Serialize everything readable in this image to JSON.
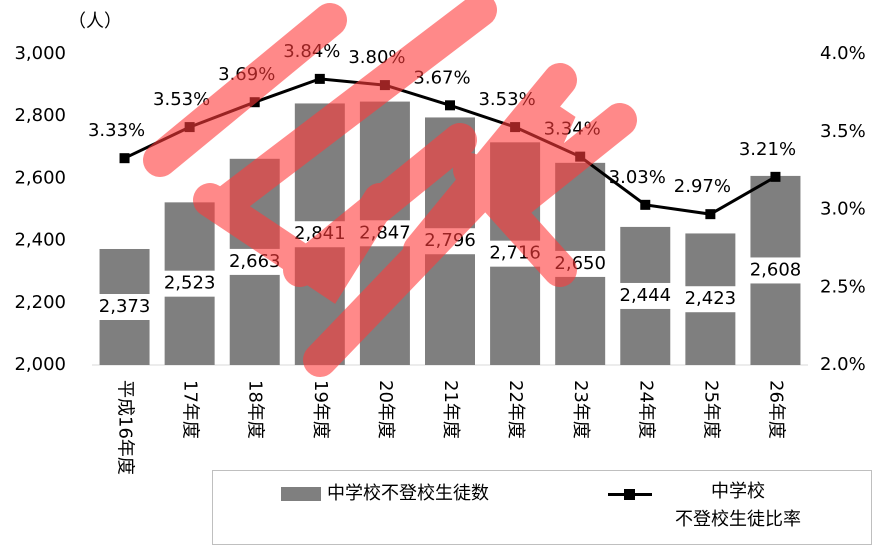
{
  "chart_data": {
    "type": "bar_line",
    "unit_label": "（人）",
    "categories": [
      "平成16年度",
      "17年度",
      "18年度",
      "19年度",
      "20年度",
      "21年度",
      "22年度",
      "23年度",
      "24年度",
      "25年度",
      "26年度"
    ],
    "series": [
      {
        "name": "中学校不登校生徒数",
        "type": "bar",
        "color": "#7f7f7f",
        "axis": "y",
        "values": [
          2373,
          2523,
          2663,
          2841,
          2847,
          2796,
          2716,
          2650,
          2444,
          2423,
          2608
        ],
        "value_labels": [
          "2,373",
          "2,523",
          "2,663",
          "2,841",
          "2,847",
          "2,796",
          "2,716",
          "2,650",
          "2,444",
          "2,423",
          "2,608"
        ]
      },
      {
        "name": "中学校\n不登校生徒比率",
        "type": "line",
        "color": "#000000",
        "axis": "y2",
        "values": [
          3.33,
          3.53,
          3.69,
          3.84,
          3.8,
          3.67,
          3.53,
          3.34,
          3.03,
          2.97,
          3.21
        ],
        "value_labels": [
          "3.33%",
          "3.53%",
          "3.69%",
          "3.84%",
          "3.80%",
          "3.67%",
          "3.53%",
          "3.34%",
          "3.03%",
          "2.97%",
          "3.21%"
        ]
      }
    ],
    "ylim": [
      2000,
      3000
    ],
    "yticks": [
      {
        "value": 2000,
        "label": "2,000"
      },
      {
        "value": 2200,
        "label": "2,200"
      },
      {
        "value": 2400,
        "label": "2,400"
      },
      {
        "value": 2600,
        "label": "2,600"
      },
      {
        "value": 2800,
        "label": "2,800"
      },
      {
        "value": 3000,
        "label": "3,000"
      }
    ],
    "y2lim": [
      2.0,
      4.0
    ],
    "y2ticks": [
      {
        "value": 2.0,
        "label": "2.0%"
      },
      {
        "value": 2.5,
        "label": "2.5%"
      },
      {
        "value": 3.0,
        "label": "3.0%"
      },
      {
        "value": 3.5,
        "label": "3.5%"
      },
      {
        "value": 4.0,
        "label": "4.0%"
      }
    ],
    "grid": false
  }
}
